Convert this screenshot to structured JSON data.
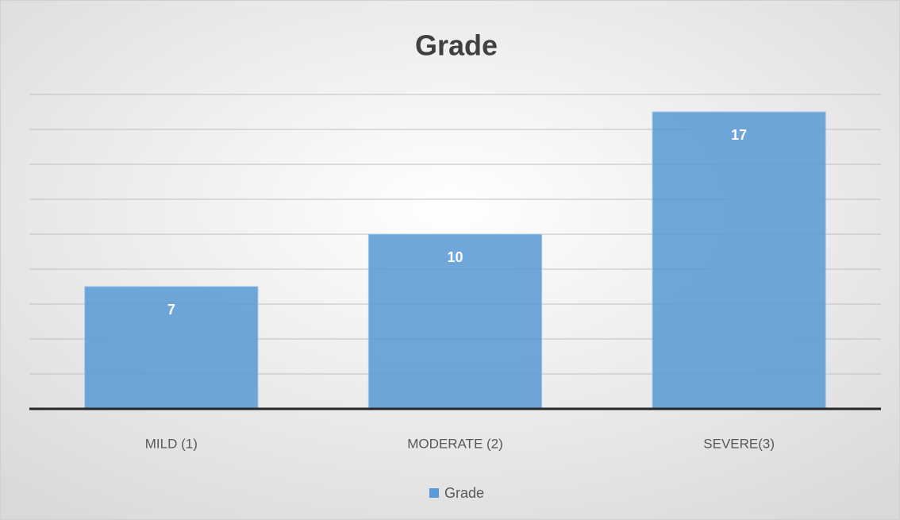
{
  "chart_data": {
    "type": "bar",
    "title": "Grade",
    "categories": [
      "MILD (1)",
      "MODERATE (2)",
      "SEVERE(3)"
    ],
    "series": [
      {
        "name": "Grade",
        "color": "#5b9bd5",
        "values": [
          7,
          10,
          17
        ]
      }
    ],
    "ylim": [
      0,
      18
    ],
    "yticks": [
      0,
      2,
      4,
      6,
      8,
      10,
      12,
      14,
      16,
      18
    ],
    "grid": true,
    "legend": "bottom",
    "data_labels": true
  }
}
